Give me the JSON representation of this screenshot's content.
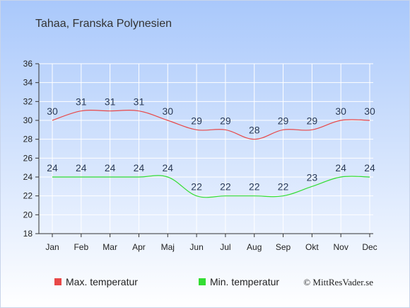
{
  "chart_data": {
    "type": "line",
    "title": "Tahaa, Franska Polynesien",
    "categories": [
      "Jan",
      "Feb",
      "Mar",
      "Apr",
      "Maj",
      "Jun",
      "Jul",
      "Aug",
      "Sep",
      "Okt",
      "Nov",
      "Dec"
    ],
    "series": [
      {
        "name": "Max. temperatur",
        "color": "#e84848",
        "values": [
          30,
          31,
          31,
          31,
          30,
          29,
          29,
          28,
          29,
          29,
          30,
          30
        ]
      },
      {
        "name": "Min. temperatur",
        "color": "#33dd33",
        "values": [
          24,
          24,
          24,
          24,
          24,
          22,
          22,
          22,
          22,
          23,
          24,
          24
        ]
      }
    ],
    "ylim": [
      18,
      36
    ],
    "yticks": [
      18,
      20,
      22,
      24,
      26,
      28,
      30,
      32,
      34,
      36
    ],
    "grid": true,
    "legend_position": "bottom"
  },
  "credit": "© MittResVader.se",
  "colors": {
    "background_top": "#a9c8fb",
    "background_bottom": "#ffffff",
    "grid": "#ffffff",
    "axis": "#333333",
    "label": "#2b3a55"
  }
}
